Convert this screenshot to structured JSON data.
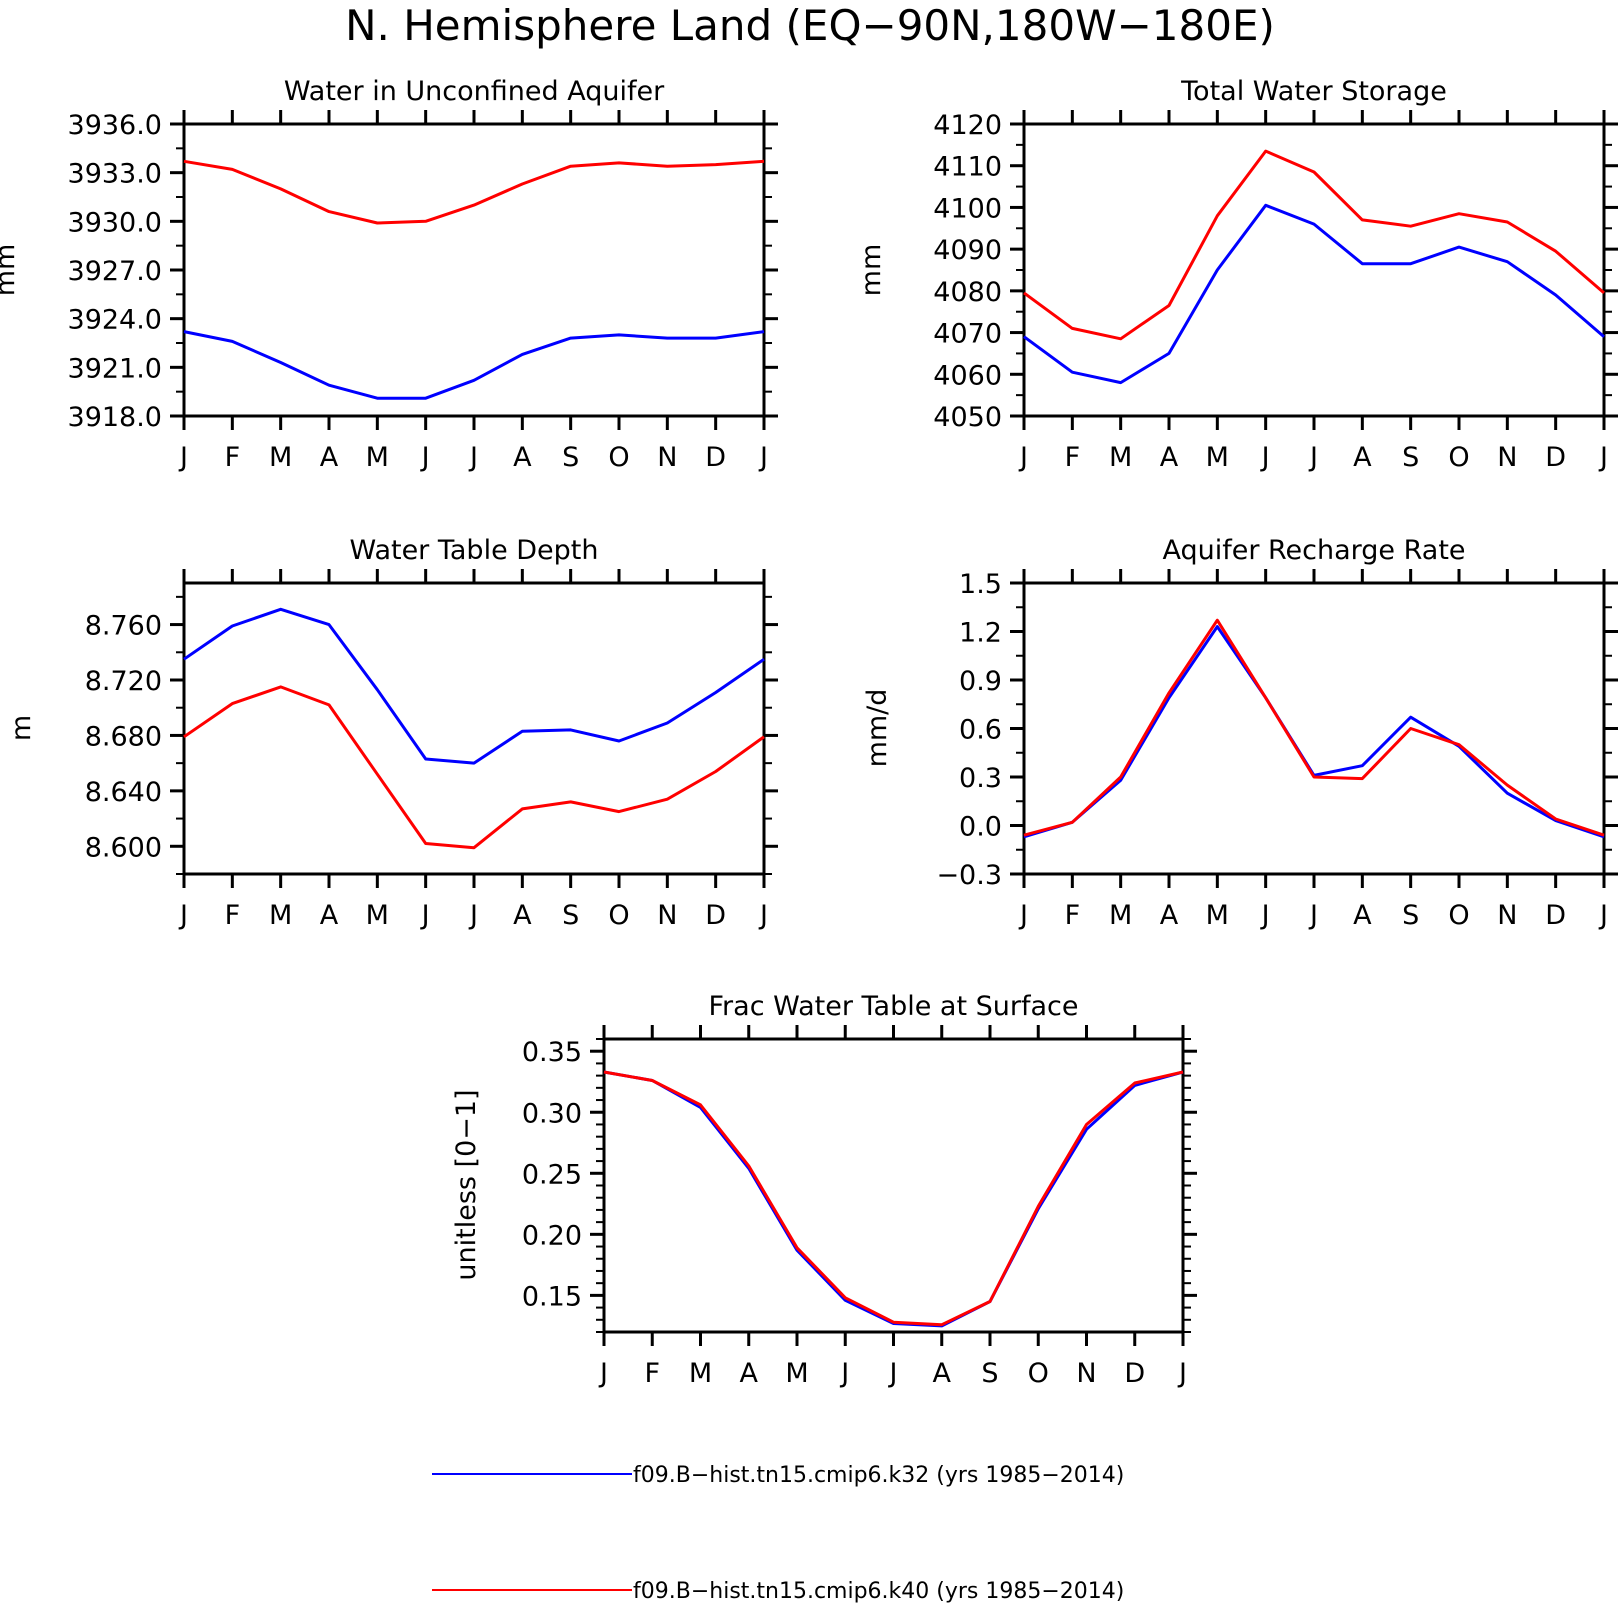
{
  "page_title": "N. Hemisphere Land (EQ−90N,180W−180E)",
  "colors": {
    "series_k32": "#0000ff",
    "series_k40": "#ff0000",
    "axes": "#000000"
  },
  "legend": [
    {
      "label": "f09.B−hist.tn15.cmip6.k32 (yrs 1985−2014)",
      "color": "#0000ff"
    },
    {
      "label": "f09.B−hist.tn15.cmip6.k40 (yrs 1985−2014)",
      "color": "#ff0000"
    }
  ],
  "chart_data": [
    {
      "type": "line",
      "title": "Water in Unconfined Aquifer",
      "ylabel": "mm",
      "xlabel": "",
      "categories": [
        "J",
        "F",
        "M",
        "A",
        "M",
        "J",
        "J",
        "A",
        "S",
        "O",
        "N",
        "D",
        "J"
      ],
      "ylim": [
        3918.0,
        3936.0
      ],
      "yticks": [
        3918.0,
        3921.0,
        3924.0,
        3927.0,
        3930.0,
        3933.0,
        3936.0
      ],
      "ytick_labels": [
        "3918.0",
        "3921.0",
        "3924.0",
        "3927.0",
        "3930.0",
        "3933.0",
        "3936.0"
      ],
      "series": [
        {
          "color": "#0000ff",
          "values": [
            3923.2,
            3922.6,
            3921.3,
            3919.9,
            3919.1,
            3919.1,
            3920.2,
            3921.8,
            3922.8,
            3923.0,
            3922.8,
            3922.8,
            3923.2
          ]
        },
        {
          "color": "#ff0000",
          "values": [
            3933.7,
            3933.2,
            3932.0,
            3930.6,
            3929.9,
            3930.0,
            3931.0,
            3932.3,
            3933.4,
            3933.6,
            3933.4,
            3933.5,
            3933.7
          ]
        }
      ]
    },
    {
      "type": "line",
      "title": "Total Water Storage",
      "ylabel": "mm",
      "xlabel": "",
      "categories": [
        "J",
        "F",
        "M",
        "A",
        "M",
        "J",
        "J",
        "A",
        "S",
        "O",
        "N",
        "D",
        "J"
      ],
      "ylim": [
        4050,
        4120
      ],
      "yticks": [
        4050,
        4060,
        4070,
        4080,
        4090,
        4100,
        4110,
        4120
      ],
      "ytick_labels": [
        "4050",
        "4060",
        "4070",
        "4080",
        "4090",
        "4100",
        "4110",
        "4120"
      ],
      "series": [
        {
          "color": "#0000ff",
          "values": [
            4069.0,
            4060.5,
            4058.0,
            4065.0,
            4085.0,
            4100.5,
            4096.0,
            4086.5,
            4086.5,
            4090.5,
            4087.0,
            4079.0,
            4069.0
          ]
        },
        {
          "color": "#ff0000",
          "values": [
            4079.5,
            4071.0,
            4068.5,
            4076.5,
            4098.0,
            4113.5,
            4108.5,
            4097.0,
            4095.5,
            4098.5,
            4096.5,
            4089.5,
            4079.5
          ]
        }
      ]
    },
    {
      "type": "line",
      "title": "Water Table Depth",
      "ylabel": "m",
      "xlabel": "",
      "categories": [
        "J",
        "F",
        "M",
        "A",
        "M",
        "J",
        "J",
        "A",
        "S",
        "O",
        "N",
        "D",
        "J"
      ],
      "ylim": [
        8.58,
        8.79
      ],
      "yticks": [
        8.6,
        8.64,
        8.68,
        8.72,
        8.76
      ],
      "ytick_labels": [
        "8.600",
        "8.640",
        "8.680",
        "8.720",
        "8.760"
      ],
      "series": [
        {
          "color": "#0000ff",
          "values": [
            8.735,
            8.759,
            8.771,
            8.76,
            8.713,
            8.663,
            8.66,
            8.683,
            8.684,
            8.676,
            8.689,
            8.711,
            8.735
          ]
        },
        {
          "color": "#ff0000",
          "values": [
            8.679,
            8.703,
            8.715,
            8.702,
            8.652,
            8.602,
            8.599,
            8.627,
            8.632,
            8.625,
            8.634,
            8.654,
            8.679
          ]
        }
      ]
    },
    {
      "type": "line",
      "title": "Aquifer Recharge Rate",
      "ylabel": "mm/d",
      "xlabel": "",
      "categories": [
        "J",
        "F",
        "M",
        "A",
        "M",
        "J",
        "J",
        "A",
        "S",
        "O",
        "N",
        "D",
        "J"
      ],
      "ylim": [
        -0.3,
        1.5
      ],
      "yticks": [
        -0.3,
        0.0,
        0.3,
        0.6,
        0.9,
        1.2,
        1.5
      ],
      "ytick_labels": [
        "−0.3",
        "0.0",
        "0.3",
        "0.6",
        "0.9",
        "1.2",
        "1.5"
      ],
      "series": [
        {
          "color": "#0000ff",
          "values": [
            -0.07,
            0.02,
            0.28,
            0.79,
            1.23,
            0.79,
            0.31,
            0.37,
            0.67,
            0.49,
            0.2,
            0.03,
            -0.07
          ]
        },
        {
          "color": "#ff0000",
          "values": [
            -0.06,
            0.02,
            0.3,
            0.82,
            1.27,
            0.79,
            0.3,
            0.29,
            0.6,
            0.5,
            0.25,
            0.04,
            -0.06
          ]
        }
      ]
    },
    {
      "type": "line",
      "title": "Frac Water Table at Surface",
      "ylabel": "unitless [0−1]",
      "xlabel": "",
      "categories": [
        "J",
        "F",
        "M",
        "A",
        "M",
        "J",
        "J",
        "A",
        "S",
        "O",
        "N",
        "D",
        "J"
      ],
      "ylim": [
        0.12,
        0.36
      ],
      "yticks": [
        0.15,
        0.2,
        0.25,
        0.3,
        0.35
      ],
      "ytick_labels": [
        "0.15",
        "0.20",
        "0.25",
        "0.30",
        "0.35"
      ],
      "series": [
        {
          "color": "#0000ff",
          "values": [
            0.333,
            0.326,
            0.304,
            0.254,
            0.187,
            0.146,
            0.127,
            0.125,
            0.145,
            0.221,
            0.286,
            0.322,
            0.333
          ]
        },
        {
          "color": "#ff0000",
          "values": [
            0.333,
            0.326,
            0.306,
            0.256,
            0.189,
            0.148,
            0.128,
            0.126,
            0.145,
            0.223,
            0.29,
            0.324,
            0.333
          ]
        }
      ]
    }
  ]
}
